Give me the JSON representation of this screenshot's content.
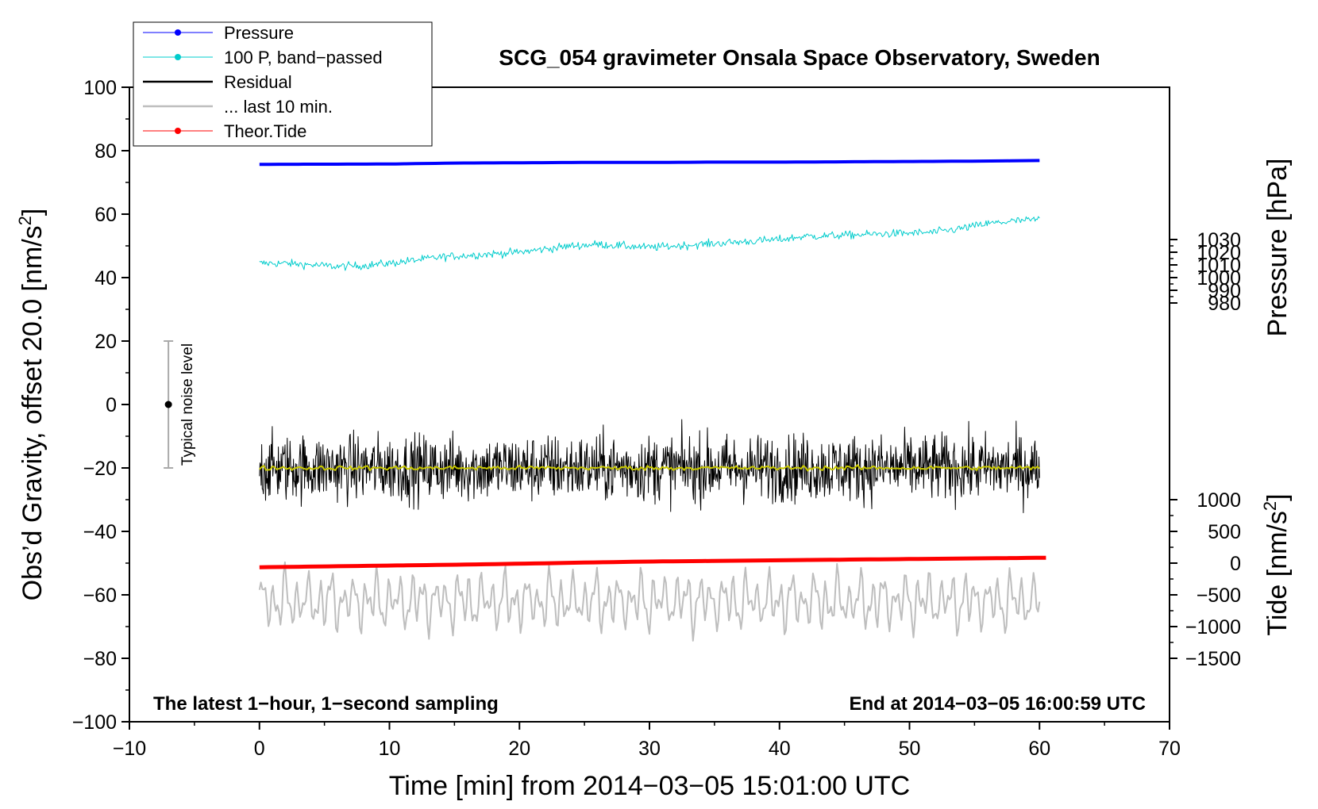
{
  "chart_data": {
    "type": "line",
    "title": "SCG_054 gravimeter Onsala Space Observatory, Sweden",
    "xlabel": "Time [min] from 2014−03−05 15:01:00 UTC",
    "ylabel_left": "Obs’d Gravity, offset 20.0 [nm/s",
    "ylabel_left_sup": "2",
    "ylabel_left_end": "]",
    "ylabel_right_pressure": "Pressure [hPa]",
    "ylabel_right_tide": "Tide [nm/s",
    "ylabel_right_tide_sup": "2",
    "ylabel_right_tide_end": "]",
    "xlim": [
      -10,
      70
    ],
    "ylim_left": [
      -100,
      100
    ],
    "pressure_axis": {
      "ticks": [
        980,
        990,
        1000,
        1010,
        1020,
        1030
      ],
      "tick_labels": [
        "980",
        "990",
        "1000",
        "1010",
        "1020",
        "1030"
      ],
      "ref_value": 1000,
      "ref_gravity": 40,
      "gravity_per_unit": 0.4
    },
    "tide_axis": {
      "ticks": [
        -1500,
        -1000,
        -500,
        0,
        500,
        1000
      ],
      "tick_labels": [
        "−1500",
        "−1000",
        "−500",
        "0",
        "500",
        "1000"
      ],
      "ref_value": 0,
      "ref_gravity": -50,
      "gravity_per_unit": 0.02
    },
    "x_ticks": [
      -10,
      0,
      10,
      20,
      30,
      40,
      50,
      60,
      70
    ],
    "x_tick_labels": [
      "−10",
      "0",
      "10",
      "20",
      "30",
      "40",
      "50",
      "60",
      "70"
    ],
    "y_ticks": [
      -100,
      -80,
      -60,
      -40,
      -20,
      0,
      20,
      40,
      60,
      80,
      100
    ],
    "y_tick_labels": [
      "−100",
      "−80",
      "−60",
      "−40",
      "−20",
      "0",
      "20",
      "40",
      "60",
      "80",
      "100"
    ],
    "annotation_left": "The latest 1−hour, 1−second sampling",
    "annotation_right": "End at 2014−03−05 16:00:59 UTC",
    "noise_bar": {
      "label": "Typical noise level",
      "x": -7,
      "center": 0,
      "low": -20,
      "high": 20
    },
    "legend": [
      {
        "label": "Pressure",
        "color": "#0000ff",
        "marker": true
      },
      {
        "label": "100 P, band−passed",
        "color": "#00cccc",
        "marker": true
      },
      {
        "label": "Residual",
        "color": "#000000",
        "marker": false
      },
      {
        "label": "... last 10 min.",
        "color": "#bebebe",
        "marker": false
      },
      {
        "label": "Theor.Tide",
        "color": "#ff0000",
        "marker": true
      }
    ],
    "series": [
      {
        "name": "Pressure",
        "color": "#0000ff",
        "width": 4,
        "x": [
          0,
          10,
          15,
          20,
          25,
          30,
          35,
          40,
          45,
          50,
          55,
          60
        ],
        "y": [
          75.7,
          75.8,
          76.1,
          76.2,
          76.3,
          76.3,
          76.4,
          76.4,
          76.5,
          76.6,
          76.7,
          76.9
        ]
      },
      {
        "name": "100 P, band−passed",
        "color": "#00cccc",
        "width": 1,
        "noise": 0.9,
        "x": [
          0,
          2,
          4,
          6,
          8,
          10,
          12,
          14,
          16,
          18,
          20,
          22,
          24,
          26,
          28,
          30,
          32,
          34,
          36,
          38,
          40,
          42,
          44,
          46,
          48,
          50,
          52,
          54,
          56,
          58,
          60
        ],
        "y": [
          44.5,
          44.5,
          44,
          43.5,
          43.8,
          44.5,
          45.5,
          46.5,
          47,
          47.5,
          48,
          49,
          50,
          50.5,
          50,
          49.5,
          50,
          50.5,
          51,
          51.5,
          52,
          53,
          53.2,
          53.5,
          53.8,
          54,
          54.3,
          55.5,
          57,
          57.8,
          58.3
        ]
      },
      {
        "name": "Residual",
        "color": "#000000",
        "width": 1,
        "noise": 7.5,
        "x": [
          0,
          60
        ],
        "y": [
          -20,
          -20
        ]
      },
      {
        "name": "Residual smoothed",
        "color": "#c8c800",
        "width": 2,
        "noise": 0.5,
        "x": [
          0,
          60
        ],
        "y": [
          -20,
          -20
        ]
      },
      {
        "name": "Theor.Tide",
        "color": "#ff0000",
        "width": 5,
        "x": [
          0,
          15,
          30,
          45,
          60.5
        ],
        "y": [
          -51.3,
          -50.5,
          -49.5,
          -48.9,
          -48.3
        ]
      },
      {
        "name": "... last 10 min.",
        "color": "#bebebe",
        "width": 2,
        "x": [
          0,
          60
        ],
        "y": [
          -62,
          -62
        ],
        "oscillating": true
      }
    ]
  }
}
